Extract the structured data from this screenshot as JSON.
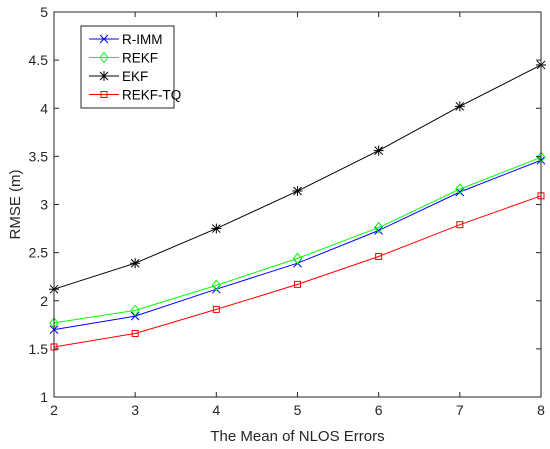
{
  "chart_data": {
    "type": "line",
    "title": "",
    "xlabel": "The Mean of NLOS Errors",
    "ylabel": "RMSE (m)",
    "x": [
      2,
      3,
      4,
      5,
      6,
      7,
      8
    ],
    "xlim": [
      2,
      8
    ],
    "ylim": [
      1,
      5
    ],
    "xticks": [
      "2",
      "3",
      "4",
      "5",
      "6",
      "7",
      "8"
    ],
    "yticks": [
      "1",
      "1.5",
      "2",
      "2.5",
      "3",
      "3.5",
      "4",
      "4.5",
      "5"
    ],
    "grid": false,
    "legend_position": "top-left",
    "series": [
      {
        "name": "R-IMM",
        "color": "#0000ff",
        "marker": "x",
        "values": [
          1.7,
          1.84,
          2.12,
          2.39,
          2.73,
          3.13,
          3.46
        ]
      },
      {
        "name": "REKF",
        "color": "#00ff00",
        "marker": "diamond",
        "values": [
          1.77,
          1.9,
          2.16,
          2.44,
          2.76,
          3.16,
          3.49
        ]
      },
      {
        "name": "EKF",
        "color": "#000000",
        "marker": "asterisk",
        "values": [
          2.12,
          2.39,
          2.75,
          3.14,
          3.56,
          4.02,
          4.45
        ]
      },
      {
        "name": "REKF-TQ",
        "color": "#ff0000",
        "marker": "square",
        "values": [
          1.52,
          1.66,
          1.91,
          2.17,
          2.46,
          2.79,
          3.09
        ]
      }
    ]
  }
}
